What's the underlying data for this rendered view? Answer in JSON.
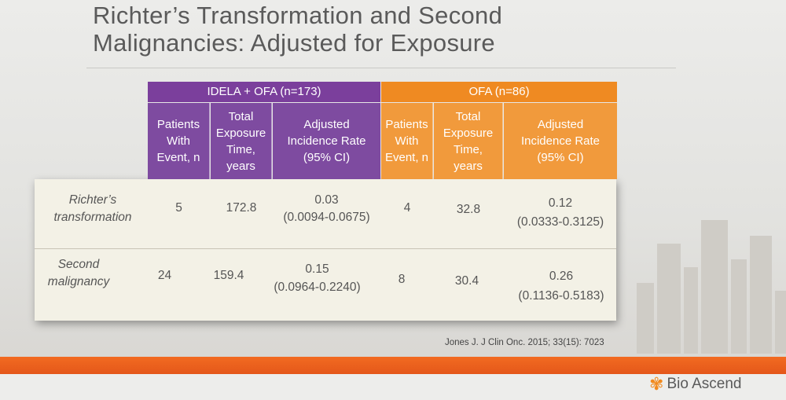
{
  "slide": {
    "title_line1": "Richter’s Transformation and Second",
    "title_line2": "Malignancies: Adjusted for Exposure",
    "citation": "Jones J. J Clin Onc. 2015; 33(15): 7023",
    "brand": "Bio Ascend",
    "logo_icon": "flower-logo-icon"
  },
  "colors": {
    "purple": "#7b3f9c",
    "orange": "#ef8a22",
    "band": "#f26b21"
  },
  "table": {
    "groups": [
      {
        "label": "IDELA + OFA (n=173)"
      },
      {
        "label": "OFA (n=86)"
      }
    ],
    "columns": [
      {
        "label": "Patients With Event, n"
      },
      {
        "label": "Total Exposure Time, years"
      },
      {
        "label": "Adjusted Incidence Rate (95% CI)"
      },
      {
        "label": "Patients With Event, n"
      },
      {
        "label": "Total Exposure Time, years"
      },
      {
        "label": "Adjusted Incidence Rate (95% CI)"
      }
    ],
    "rows": [
      {
        "label": "Richter’s transformation",
        "idela_events": "5",
        "idela_exposure": "172.8",
        "idela_rate": "0.03",
        "idela_ci": "(0.0094-0.0675)",
        "ofa_events": "4",
        "ofa_exposure": "32.8",
        "ofa_rate": "0.12",
        "ofa_ci": "(0.0333-0.3125)"
      },
      {
        "label": "Second malignancy",
        "idela_events": "24",
        "idela_exposure": "159.4",
        "idela_rate": "0.15",
        "idela_ci": "(0.0964-0.2240)",
        "ofa_events": "8",
        "ofa_exposure": "30.4",
        "ofa_rate": "0.26",
        "ofa_ci": "(0.1136-0.5183)"
      }
    ]
  }
}
